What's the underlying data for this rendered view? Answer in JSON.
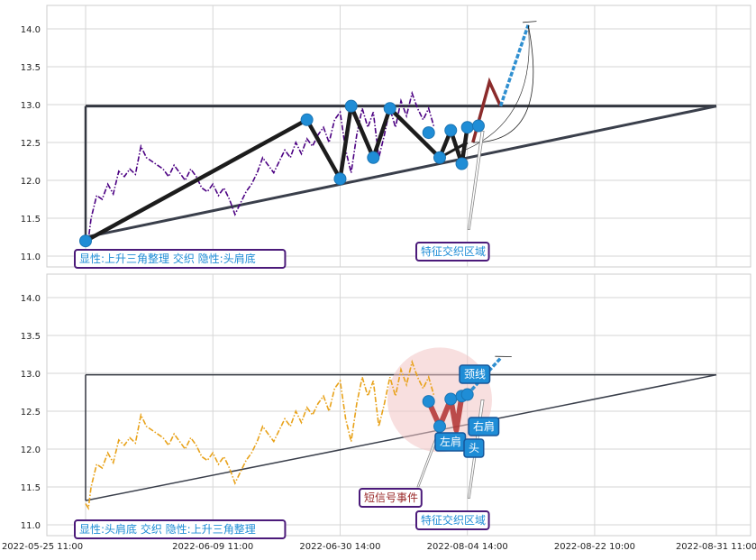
{
  "chart_data": [
    {
      "type": "line",
      "panel": "top",
      "ylim": [
        10.85,
        14.3
      ],
      "yticks": [
        "14.0",
        "13.5",
        "13.0",
        "12.5",
        "12.0",
        "11.5",
        "11.0"
      ],
      "ytick_values": [
        14.0,
        13.5,
        13.0,
        12.5,
        12.0,
        11.5,
        11.0
      ],
      "grid": true,
      "price_color": "#4b0082",
      "price_series": [
        [
          0,
          11.28
        ],
        [
          0.5,
          11.22
        ],
        [
          1,
          11.5
        ],
        [
          2,
          11.8
        ],
        [
          3,
          11.75
        ],
        [
          4,
          11.95
        ],
        [
          5,
          11.82
        ],
        [
          6,
          12.12
        ],
        [
          7,
          12.05
        ],
        [
          8,
          12.15
        ],
        [
          9,
          12.08
        ],
        [
          10,
          12.45
        ],
        [
          11,
          12.3
        ],
        [
          12,
          12.25
        ],
        [
          13,
          12.2
        ],
        [
          14,
          12.15
        ],
        [
          15,
          12.05
        ],
        [
          16,
          12.2
        ],
        [
          17,
          12.1
        ],
        [
          18,
          12.0
        ],
        [
          19,
          12.15
        ],
        [
          20,
          12.05
        ],
        [
          21,
          11.9
        ],
        [
          22,
          11.85
        ],
        [
          23,
          11.95
        ],
        [
          24,
          11.8
        ],
        [
          25,
          11.9
        ],
        [
          26,
          11.75
        ],
        [
          27,
          11.55
        ],
        [
          28,
          11.7
        ],
        [
          29,
          11.85
        ],
        [
          30,
          11.95
        ],
        [
          31,
          12.1
        ],
        [
          32,
          12.3
        ],
        [
          33,
          12.2
        ],
        [
          34,
          12.1
        ],
        [
          35,
          12.25
        ],
        [
          36,
          12.4
        ],
        [
          37,
          12.3
        ],
        [
          38,
          12.5
        ],
        [
          39,
          12.35
        ],
        [
          40,
          12.55
        ],
        [
          41,
          12.45
        ],
        [
          42,
          12.6
        ],
        [
          43,
          12.7
        ],
        [
          44,
          12.5
        ],
        [
          45,
          12.8
        ],
        [
          46,
          12.9
        ],
        [
          47,
          12.4
        ],
        [
          48,
          12.1
        ],
        [
          49,
          12.6
        ],
        [
          50,
          12.95
        ],
        [
          51,
          12.7
        ],
        [
          52,
          12.9
        ],
        [
          53,
          12.3
        ],
        [
          54,
          12.6
        ],
        [
          55,
          12.95
        ],
        [
          56,
          12.7
        ],
        [
          57,
          13.05
        ],
        [
          58,
          12.85
        ],
        [
          59,
          13.15
        ],
        [
          60,
          12.95
        ],
        [
          61,
          12.8
        ],
        [
          62,
          12.95
        ],
        [
          63,
          12.7
        ]
      ],
      "markers": [
        {
          "x": 0,
          "y": 11.2
        },
        {
          "x": 40,
          "y": 12.8
        },
        {
          "x": 46,
          "y": 12.02
        },
        {
          "x": 48,
          "y": 12.98
        },
        {
          "x": 52,
          "y": 12.3
        },
        {
          "x": 55,
          "y": 12.95
        },
        {
          "x": 62,
          "y": 12.63
        },
        {
          "x": 64,
          "y": 12.3
        },
        {
          "x": 66,
          "y": 12.66
        },
        {
          "x": 68,
          "y": 12.22
        },
        {
          "x": 69,
          "y": 12.7
        },
        {
          "x": 71,
          "y": 12.72
        }
      ],
      "zigzag": [
        [
          0,
          11.2
        ],
        [
          40,
          12.8
        ],
        [
          46,
          12.02
        ],
        [
          48,
          12.98
        ],
        [
          52,
          12.3
        ],
        [
          55,
          12.95
        ],
        [
          64,
          12.3
        ],
        [
          66,
          12.66
        ],
        [
          68,
          12.22
        ],
        [
          69,
          12.7
        ]
      ],
      "neckline": [
        [
          64,
          12.3
        ],
        [
          69,
          12.5
        ]
      ],
      "projection_red": [
        [
          70,
          12.5
        ],
        [
          73,
          13.3
        ],
        [
          75,
          12.98
        ]
      ],
      "projection_blue": [
        [
          75,
          12.98
        ],
        [
          80,
          14.05
        ]
      ],
      "triangle": {
        "apex": [
          114,
          12.98
        ],
        "upper_start": [
          0,
          12.98
        ],
        "lower_start": [
          0,
          11.25
        ]
      },
      "labels": {
        "pattern": "显性:上升三角整理 交织 隐性:头肩底",
        "zone": "特征交织区域"
      }
    },
    {
      "type": "line",
      "panel": "bottom",
      "ylim": [
        10.85,
        14.3
      ],
      "yticks": [
        "14.0",
        "13.5",
        "13.0",
        "12.5",
        "12.0",
        "11.5",
        "11.0"
      ],
      "ytick_values": [
        14.0,
        13.5,
        13.0,
        12.5,
        12.0,
        11.5,
        11.0
      ],
      "xticks": [
        "2022-05-25 11:00",
        "2022-06-09 11:00",
        "2022-06-30 14:00",
        "2022-08-04 14:00",
        "2022-08-22 10:00",
        "2022-08-31 11:00"
      ],
      "grid": true,
      "price_color": "#e8a21a",
      "price_series": [
        [
          0,
          11.28
        ],
        [
          0.5,
          11.22
        ],
        [
          1,
          11.5
        ],
        [
          2,
          11.8
        ],
        [
          3,
          11.75
        ],
        [
          4,
          11.95
        ],
        [
          5,
          11.82
        ],
        [
          6,
          12.12
        ],
        [
          7,
          12.05
        ],
        [
          8,
          12.15
        ],
        [
          9,
          12.08
        ],
        [
          10,
          12.45
        ],
        [
          11,
          12.3
        ],
        [
          12,
          12.25
        ],
        [
          13,
          12.2
        ],
        [
          14,
          12.15
        ],
        [
          15,
          12.05
        ],
        [
          16,
          12.2
        ],
        [
          17,
          12.1
        ],
        [
          18,
          12.0
        ],
        [
          19,
          12.15
        ],
        [
          20,
          12.05
        ],
        [
          21,
          11.9
        ],
        [
          22,
          11.85
        ],
        [
          23,
          11.95
        ],
        [
          24,
          11.8
        ],
        [
          25,
          11.9
        ],
        [
          26,
          11.75
        ],
        [
          27,
          11.55
        ],
        [
          28,
          11.7
        ],
        [
          29,
          11.85
        ],
        [
          30,
          11.95
        ],
        [
          31,
          12.1
        ],
        [
          32,
          12.3
        ],
        [
          33,
          12.2
        ],
        [
          34,
          12.1
        ],
        [
          35,
          12.25
        ],
        [
          36,
          12.4
        ],
        [
          37,
          12.3
        ],
        [
          38,
          12.5
        ],
        [
          39,
          12.35
        ],
        [
          40,
          12.55
        ],
        [
          41,
          12.45
        ],
        [
          42,
          12.6
        ],
        [
          43,
          12.7
        ],
        [
          44,
          12.5
        ],
        [
          45,
          12.8
        ],
        [
          46,
          12.9
        ],
        [
          47,
          12.4
        ],
        [
          48,
          12.1
        ],
        [
          49,
          12.6
        ],
        [
          50,
          12.95
        ],
        [
          51,
          12.7
        ],
        [
          52,
          12.9
        ],
        [
          53,
          12.3
        ],
        [
          54,
          12.6
        ],
        [
          55,
          12.95
        ],
        [
          56,
          12.7
        ],
        [
          57,
          13.05
        ],
        [
          58,
          12.85
        ],
        [
          59,
          13.15
        ],
        [
          60,
          12.95
        ],
        [
          61,
          12.8
        ],
        [
          62,
          12.95
        ],
        [
          63,
          12.7
        ]
      ],
      "markers": [
        {
          "x": 62,
          "y": 12.63
        },
        {
          "x": 64,
          "y": 12.3
        },
        {
          "x": 66,
          "y": 12.66
        },
        {
          "x": 68,
          "y": 12.7
        },
        {
          "x": 69,
          "y": 12.72
        }
      ],
      "hs_polyline": [
        [
          62,
          12.63
        ],
        [
          64,
          12.3
        ],
        [
          66,
          12.66
        ],
        [
          67,
          12.25
        ],
        [
          68,
          12.7
        ],
        [
          69,
          12.72
        ]
      ],
      "projection_blue": [
        [
          69,
          12.72
        ],
        [
          75,
          13.2
        ]
      ],
      "circle_center": [
        64,
        12.65
      ],
      "triangle": {
        "apex": [
          114,
          12.98
        ],
        "upper_start": [
          0,
          12.98
        ],
        "lower_start": [
          0,
          11.32
        ]
      },
      "labels": {
        "pattern": "显性:头肩底 交织 隐性:上升三角整理",
        "zone": "特征交织区域",
        "short_signal": "短信号事件",
        "neckline": "颈线",
        "left_shoulder": "左肩",
        "head": "头",
        "right_shoulder": "右肩"
      }
    }
  ]
}
